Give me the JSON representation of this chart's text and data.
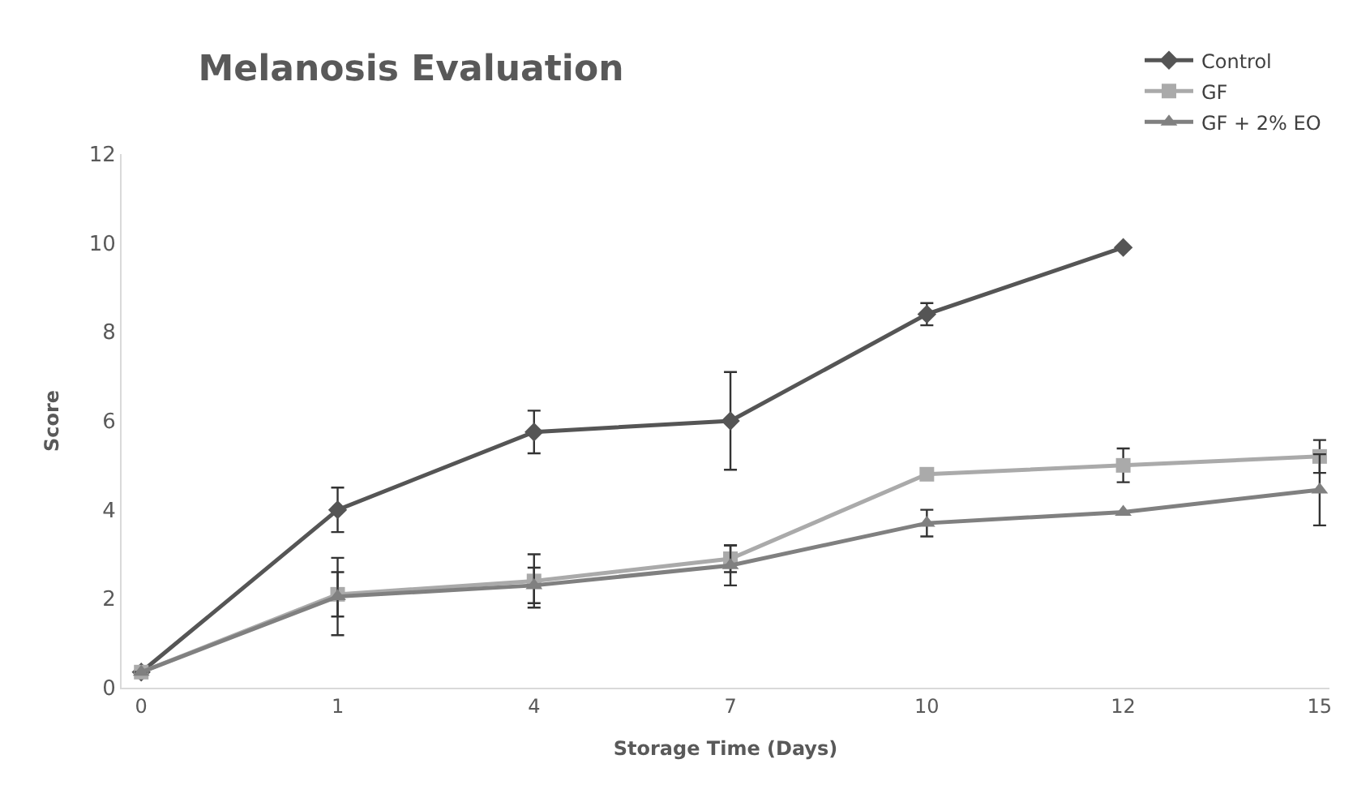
{
  "chart_data": {
    "type": "line",
    "title": "Melanosis Evaluation",
    "xlabel": "Storage Time (Days)",
    "ylabel": "Score",
    "categories": [
      "0",
      "1",
      "4",
      "7",
      "10",
      "12",
      "15"
    ],
    "ylim": [
      0,
      12
    ],
    "yticks": [
      0,
      2,
      4,
      6,
      8,
      10,
      12
    ],
    "grid": false,
    "legend": "top right",
    "series": [
      {
        "name": "Control",
        "color": "#555555",
        "marker": "diamond",
        "values": [
          0.35,
          4.0,
          5.75,
          6.0,
          8.4,
          9.9,
          null
        ],
        "errors": [
          null,
          0.5,
          0.48,
          1.1,
          0.25,
          null,
          null
        ]
      },
      {
        "name": "GF",
        "color": "#aaaaaa",
        "marker": "square",
        "values": [
          0.35,
          2.1,
          2.4,
          2.9,
          4.8,
          5.0,
          5.2
        ],
        "errors": [
          null,
          0.5,
          0.6,
          0.3,
          null,
          0.38,
          0.37
        ]
      },
      {
        "name": "GF + 2% EO",
        "color": "#808080",
        "marker": "triangle",
        "values": [
          0.35,
          2.05,
          2.3,
          2.75,
          3.7,
          3.95,
          4.45
        ],
        "errors": [
          null,
          0.87,
          0.4,
          0.45,
          0.3,
          null,
          0.8
        ]
      }
    ]
  }
}
